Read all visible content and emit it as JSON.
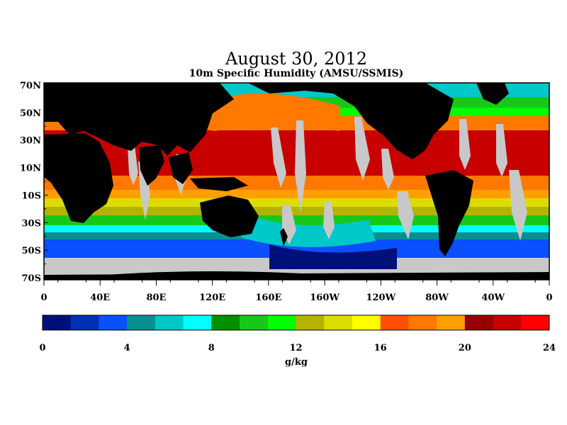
{
  "title": "August 30, 2012",
  "subtitle": "10m Specific Humidity (AMSU/SSMIS)",
  "map": {
    "lat_labels": [
      "70N",
      "50N",
      "30N",
      "10N",
      "10S",
      "30S",
      "50S",
      "70S"
    ],
    "lon_labels": [
      "0",
      "40E",
      "80E",
      "120E",
      "160E",
      "160W",
      "120W",
      "80W",
      "40W",
      "0"
    ],
    "land_color": "#000000",
    "missing_color": "#c8c8c8"
  },
  "colorbar": {
    "colors": [
      "#00107a",
      "#0030b4",
      "#0a50ff",
      "#089090",
      "#00c8c8",
      "#00ffff",
      "#009000",
      "#18c818",
      "#00ff00",
      "#b4b400",
      "#dcdc00",
      "#ffff00",
      "#ff5000",
      "#ff7800",
      "#ffa000",
      "#960000",
      "#c80000",
      "#ff0000"
    ],
    "labels": [
      "0",
      "4",
      "8",
      "12",
      "16",
      "20",
      "24"
    ],
    "unit": "g/kg"
  }
}
